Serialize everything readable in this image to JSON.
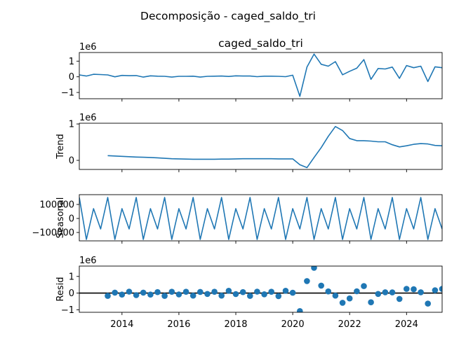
{
  "figure": {
    "suptitle": "Decomposição - caged_saldo_tri"
  },
  "x_ticks": [
    "2014",
    "2016",
    "2018",
    "2020",
    "2022",
    "2024"
  ],
  "chart_data": [
    {
      "type": "line",
      "panel": "observed",
      "title": "caged_saldo_tri",
      "ylabel": "",
      "multiplier": "1e6",
      "ytick_labels": [
        "1",
        "0",
        "−1"
      ],
      "yticks": [
        1,
        0,
        -1
      ],
      "ylim": [
        -1.4,
        1.55
      ],
      "xlim": [
        2012.5,
        2025.25
      ],
      "line_color": "#1f77b4",
      "x": [
        2012.5,
        2012.75,
        2013,
        2013.25,
        2013.5,
        2013.75,
        2014,
        2014.25,
        2014.5,
        2014.75,
        2015,
        2015.25,
        2015.5,
        2015.75,
        2016,
        2016.25,
        2016.5,
        2016.75,
        2017,
        2017.25,
        2017.5,
        2017.75,
        2018,
        2018.25,
        2018.5,
        2018.75,
        2019,
        2019.25,
        2019.5,
        2019.75,
        2020,
        2020.25,
        2020.5,
        2020.75,
        2021,
        2021.25,
        2021.5,
        2021.75,
        2022,
        2022.25,
        2022.5,
        2022.75,
        2023,
        2023.25,
        2023.5,
        2023.75,
        2024,
        2024.25,
        2024.5,
        2024.75,
        2025,
        2025.25
      ],
      "y": [
        0.12,
        0.05,
        0.16,
        0.14,
        0.12,
        0.0,
        0.09,
        0.07,
        0.08,
        -0.02,
        0.06,
        0.04,
        0.03,
        -0.02,
        0.03,
        0.03,
        0.04,
        -0.02,
        0.03,
        0.04,
        0.05,
        0.02,
        0.06,
        0.05,
        0.05,
        0.01,
        0.04,
        0.04,
        0.03,
        0.01,
        0.1,
        -1.25,
        0.62,
        1.45,
        0.8,
        0.68,
        0.97,
        0.13,
        0.35,
        0.55,
        1.1,
        -0.16,
        0.53,
        0.5,
        0.62,
        -0.1,
        0.72,
        0.58,
        0.68,
        -0.3,
        0.64,
        0.58
      ]
    },
    {
      "type": "line",
      "panel": "trend",
      "ylabel": "Trend",
      "multiplier": "1e6",
      "ytick_labels": [
        "1",
        "0"
      ],
      "yticks": [
        1,
        0
      ],
      "ylim": [
        -0.25,
        1.02
      ],
      "xlim": [
        2012.5,
        2025.25
      ],
      "line_color": "#1f77b4",
      "x": [
        2013.5,
        2013.75,
        2014,
        2014.25,
        2014.5,
        2014.75,
        2015,
        2015.25,
        2015.5,
        2015.75,
        2016,
        2016.25,
        2016.5,
        2016.75,
        2017,
        2017.25,
        2017.5,
        2017.75,
        2018,
        2018.25,
        2018.5,
        2018.75,
        2019,
        2019.25,
        2019.5,
        2019.75,
        2020,
        2020.25,
        2020.5,
        2020.75,
        2021,
        2021.25,
        2021.5,
        2021.75,
        2022,
        2022.25,
        2022.5,
        2022.75,
        2023,
        2023.25,
        2023.5,
        2023.75,
        2024,
        2024.25,
        2024.5,
        2024.75,
        2025,
        2025.25
      ],
      "y": [
        0.13,
        0.12,
        0.11,
        0.1,
        0.09,
        0.085,
        0.08,
        0.07,
        0.055,
        0.045,
        0.04,
        0.035,
        0.03,
        0.03,
        0.03,
        0.03,
        0.035,
        0.035,
        0.04,
        0.045,
        0.045,
        0.045,
        0.045,
        0.045,
        0.04,
        0.04,
        0.04,
        -0.12,
        -0.2,
        0.08,
        0.35,
        0.66,
        0.93,
        0.82,
        0.6,
        0.54,
        0.54,
        0.53,
        0.51,
        0.51,
        0.43,
        0.37,
        0.4,
        0.44,
        0.46,
        0.45,
        0.41,
        0.4
      ]
    },
    {
      "type": "line",
      "panel": "seasonal",
      "ylabel": "Seasonal",
      "multiplier": "",
      "ytick_labels": [
        "100000",
        "0",
        "−100000"
      ],
      "yticks": [
        100000,
        0,
        -100000
      ],
      "ylim": [
        -160000,
        170000
      ],
      "xlim": [
        2012.5,
        2025.25
      ],
      "line_color": "#1f77b4",
      "x": [
        2012.5,
        2012.75,
        2013,
        2013.25,
        2013.5,
        2013.75,
        2014,
        2014.25,
        2014.5,
        2014.75,
        2015,
        2015.25,
        2015.5,
        2015.75,
        2016,
        2016.25,
        2016.5,
        2016.75,
        2017,
        2017.25,
        2017.5,
        2017.75,
        2018,
        2018.25,
        2018.5,
        2018.75,
        2019,
        2019.25,
        2019.5,
        2019.75,
        2020,
        2020.25,
        2020.5,
        2020.75,
        2021,
        2021.25,
        2021.5,
        2021.75,
        2022,
        2022.25,
        2022.5,
        2022.75,
        2023,
        2023.25,
        2023.5,
        2023.75,
        2024,
        2024.25,
        2024.5,
        2024.75,
        2025,
        2025.25
      ],
      "y": [
        150000,
        -150000,
        70000,
        -75000,
        150000,
        -150000,
        70000,
        -75000,
        150000,
        -150000,
        70000,
        -75000,
        150000,
        -150000,
        70000,
        -75000,
        150000,
        -150000,
        70000,
        -75000,
        150000,
        -150000,
        70000,
        -75000,
        150000,
        -150000,
        70000,
        -75000,
        150000,
        -150000,
        70000,
        -75000,
        150000,
        -150000,
        70000,
        -75000,
        150000,
        -150000,
        70000,
        -75000,
        150000,
        -150000,
        70000,
        -75000,
        150000,
        -150000,
        70000,
        -75000,
        150000,
        -150000,
        70000,
        -75000
      ]
    },
    {
      "type": "scatter",
      "panel": "resid",
      "ylabel": "Resid",
      "multiplier": "1e6",
      "ytick_labels": [
        "1",
        "0",
        "−1"
      ],
      "yticks": [
        1,
        0,
        -1
      ],
      "ylim": [
        -1.15,
        1.62
      ],
      "xlim": [
        2012.5,
        2025.25
      ],
      "baseline": 0,
      "point_color": "#1f77b4",
      "x": [
        2013.5,
        2013.75,
        2014,
        2014.25,
        2014.5,
        2014.75,
        2015,
        2015.25,
        2015.5,
        2015.75,
        2016,
        2016.25,
        2016.5,
        2016.75,
        2017,
        2017.25,
        2017.5,
        2017.75,
        2018,
        2018.25,
        2018.5,
        2018.75,
        2019,
        2019.25,
        2019.5,
        2019.75,
        2020,
        2020.25,
        2020.5,
        2020.75,
        2021,
        2021.25,
        2021.5,
        2021.75,
        2022,
        2022.25,
        2022.5,
        2022.75,
        2023,
        2023.25,
        2023.5,
        2023.75,
        2024,
        2024.25,
        2024.5,
        2024.75,
        2025,
        2025.25
      ],
      "y": [
        -0.17,
        0.03,
        -0.09,
        0.09,
        -0.12,
        0.03,
        -0.09,
        0.06,
        -0.17,
        0.08,
        -0.08,
        0.08,
        -0.15,
        0.07,
        -0.05,
        0.08,
        -0.15,
        0.14,
        -0.06,
        0.06,
        -0.17,
        0.09,
        -0.07,
        0.08,
        -0.18,
        0.14,
        0.02,
        -1.08,
        0.72,
        1.52,
        0.45,
        0.1,
        -0.15,
        -0.58,
        -0.32,
        0.11,
        0.42,
        -0.55,
        -0.05,
        0.05,
        0.04,
        -0.35,
        0.25,
        0.23,
        0.05,
        -0.63,
        0.17,
        0.25
      ]
    }
  ]
}
